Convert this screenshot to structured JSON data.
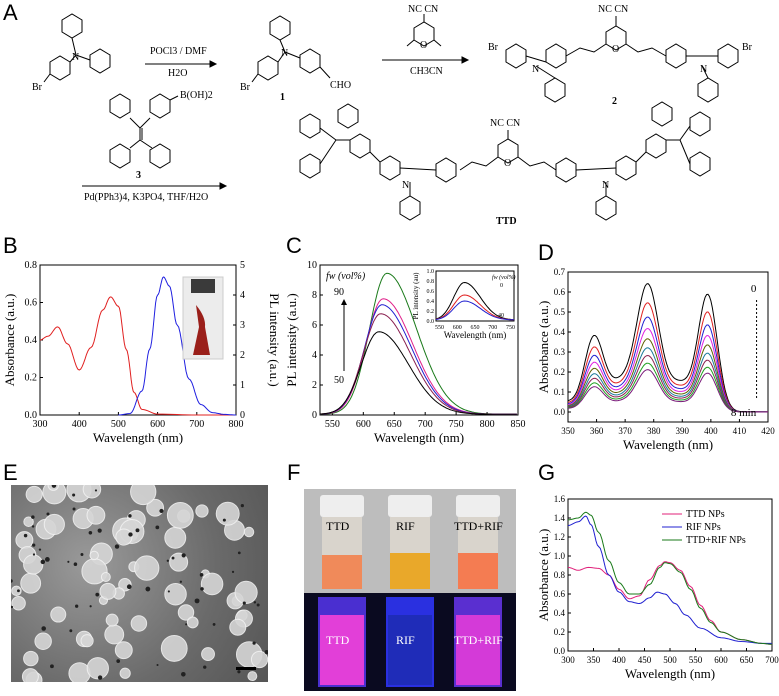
{
  "panels": {
    "A": "A",
    "B": "B",
    "C": "C",
    "D": "D",
    "E": "E",
    "F": "F",
    "G": "G"
  },
  "scheme": {
    "reagent1_top": "POCl3 / DMF",
    "reagent1_bottom": "H2O",
    "compound1": "1",
    "cho": "CHO",
    "br1": "Br",
    "br2": "Br",
    "br3": "Br",
    "br4": "Br",
    "reagent2_top": "NC   CN",
    "reagent2_bottom": "CH3CN",
    "compound2": "2",
    "nc_cn": "NC   CN",
    "boronic": "B(OH)2",
    "compound3": "3",
    "reagent3_bottom": "Pd(PPh3)4, K3PO4, THF/H2O",
    "ttd_nc_cn": "NC   CN",
    "ttd_label": "TTD",
    "N": "N",
    "O": "O"
  },
  "chart_data": [
    {
      "panel": "B",
      "type": "line",
      "xlabel": "Wavelength (nm)",
      "ylabel": "Absorbance (a.u.)",
      "ylabel_right": "PL intensity (a.u.)",
      "xlim": [
        300,
        800
      ],
      "ylim": [
        0,
        0.8
      ],
      "ylim_right": [
        0,
        5
      ],
      "xticks": [
        "300",
        "400",
        "500",
        "600",
        "700",
        "800"
      ],
      "yticks": [
        "0.0",
        "0.2",
        "0.4",
        "0.6",
        "0.8"
      ],
      "yticks_right": [
        "0",
        "1",
        "2",
        "3",
        "4",
        "5"
      ],
      "series": [
        {
          "color": "#e02020",
          "x": [
            300,
            320,
            345,
            370,
            400,
            430,
            460,
            480,
            500,
            520,
            540,
            560,
            600,
            700,
            800
          ],
          "y": [
            0.4,
            0.42,
            0.47,
            0.38,
            0.24,
            0.36,
            0.56,
            0.63,
            0.58,
            0.35,
            0.12,
            0.03,
            0.005,
            0,
            0
          ]
        },
        {
          "color": "#2020e0",
          "x": [
            500,
            530,
            560,
            580,
            600,
            615,
            630,
            650,
            680,
            710,
            740,
            770,
            800
          ],
          "y": [
            0,
            0.05,
            0.8,
            2.2,
            4.0,
            4.6,
            4.3,
            3.0,
            1.2,
            0.35,
            0.08,
            0.02,
            0
          ]
        }
      ]
    },
    {
      "panel": "C",
      "type": "line",
      "xlabel": "Wavelength (nm)",
      "ylabel": "PL intensity (a.u.)",
      "xlim": [
        530,
        850
      ],
      "ylim": [
        0,
        10
      ],
      "xticks": [
        "550",
        "600",
        "650",
        "700",
        "750",
        "800",
        "850"
      ],
      "yticks": [
        "0",
        "2",
        "4",
        "6",
        "8",
        "10"
      ],
      "annotations": [
        "fw (vol%)",
        "90",
        "50"
      ],
      "series": [
        {
          "color": "#1a7a1a",
          "peak": 9.4,
          "center": 638
        },
        {
          "color": "#e0208a",
          "peak": 7.7,
          "center": 632
        },
        {
          "color": "#2020d0",
          "peak": 7.3,
          "center": 630
        },
        {
          "color": "#8a2050",
          "peak": 6.7,
          "center": 628
        },
        {
          "color": "#000000",
          "peak": 5.5,
          "center": 625
        }
      ],
      "inset": {
        "xlabel": "Wavelength (nm)",
        "ylabel": "PL intensity (au)",
        "xticks": [
          "550",
          "600",
          "650",
          "700",
          "750"
        ],
        "yticks": [
          "0.0",
          "0.2",
          "0.4",
          "0.6",
          "0.8",
          "1.0"
        ],
        "annotations": [
          "fw (vol%)",
          "0",
          "40"
        ],
        "series": [
          {
            "color": "#000000",
            "peak": 0.75
          },
          {
            "color": "#e02020",
            "peak": 0.5
          },
          {
            "color": "#2020d0",
            "peak": 0.38
          }
        ]
      }
    },
    {
      "panel": "D",
      "type": "line",
      "xlabel": "Wavelength (nm)",
      "ylabel": "Absorbance (a.u.)",
      "xlim": [
        350,
        420
      ],
      "ylim": [
        -0.05,
        0.7
      ],
      "xticks": [
        "350",
        "360",
        "370",
        "380",
        "390",
        "400",
        "410",
        "420"
      ],
      "yticks": [
        "0.0",
        "0.1",
        "0.2",
        "0.3",
        "0.4",
        "0.5",
        "0.6",
        "0.7"
      ],
      "annotations": [
        "0",
        "8 min"
      ],
      "peaks_x": [
        359,
        378,
        399
      ],
      "series": [
        {
          "color": "#000000",
          "scale": 1.0
        },
        {
          "color": "#e02020",
          "scale": 0.85
        },
        {
          "color": "#2020d0",
          "scale": 0.74
        },
        {
          "color": "#e020e0",
          "scale": 0.65
        },
        {
          "color": "#606000",
          "scale": 0.57
        },
        {
          "color": "#1a7a9a",
          "scale": 0.5
        },
        {
          "color": "#8a2050",
          "scale": 0.44
        },
        {
          "color": "#20a020",
          "scale": 0.38
        },
        {
          "color": "#7a1a7a",
          "scale": 0.33
        }
      ]
    },
    {
      "panel": "G",
      "type": "line",
      "xlabel": "Wavelength (nm)",
      "ylabel": "Absorbance (a.u.)",
      "xlim": [
        300,
        700
      ],
      "ylim": [
        0,
        1.6
      ],
      "xticks": [
        "300",
        "350",
        "400",
        "450",
        "500",
        "550",
        "600",
        "650",
        "700"
      ],
      "yticks": [
        "0.0",
        "0.2",
        "0.4",
        "0.6",
        "0.8",
        "1.0",
        "1.2",
        "1.4",
        "1.6"
      ],
      "series": [
        {
          "name": "TTD NPs",
          "color": "#e0207a",
          "x": [
            300,
            320,
            340,
            360,
            380,
            400,
            420,
            440,
            460,
            480,
            490,
            500,
            520,
            540,
            560,
            580,
            600,
            640,
            680,
            700
          ],
          "y": [
            0.88,
            0.85,
            0.88,
            0.87,
            0.8,
            0.65,
            0.55,
            0.58,
            0.75,
            0.9,
            0.94,
            0.93,
            0.85,
            0.68,
            0.48,
            0.32,
            0.2,
            0.12,
            0.08,
            0.07
          ]
        },
        {
          "name": "RIF NPs",
          "color": "#2020d0",
          "x": [
            300,
            320,
            335,
            345,
            360,
            380,
            400,
            420,
            440,
            460,
            475,
            490,
            510,
            530,
            560,
            600,
            640,
            680,
            700
          ],
          "y": [
            1.32,
            1.36,
            1.42,
            1.33,
            1.1,
            0.8,
            0.62,
            0.52,
            0.5,
            0.56,
            0.62,
            0.6,
            0.5,
            0.38,
            0.24,
            0.14,
            0.1,
            0.08,
            0.08
          ]
        },
        {
          "name": "TTD+RIF NPs",
          "color": "#1a7a1a",
          "x": [
            300,
            320,
            335,
            345,
            360,
            380,
            400,
            420,
            440,
            460,
            480,
            490,
            500,
            520,
            540,
            560,
            580,
            600,
            640,
            680,
            700
          ],
          "y": [
            1.38,
            1.4,
            1.46,
            1.43,
            1.25,
            0.95,
            0.72,
            0.6,
            0.6,
            0.7,
            0.88,
            0.93,
            0.92,
            0.83,
            0.65,
            0.45,
            0.3,
            0.2,
            0.12,
            0.08,
            0.07
          ]
        }
      ]
    }
  ],
  "photoF": {
    "vial_labels_top": [
      "TTD",
      "RIF",
      "TTD+RIF"
    ],
    "vial_labels_bottom": [
      "TTD",
      "RIF",
      "TTD+RIF"
    ]
  }
}
